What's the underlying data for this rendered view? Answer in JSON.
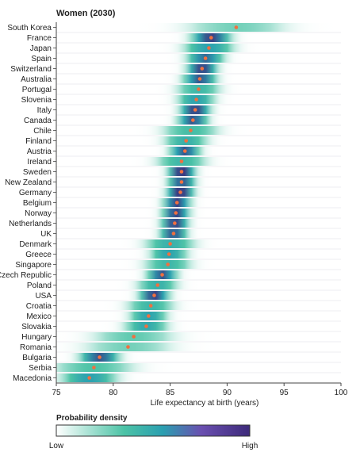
{
  "chart_data": {
    "type": "heatmap",
    "title": "Women (2030)",
    "xlabel": "Life expectancy at birth (years)",
    "xlim": [
      75,
      100
    ],
    "xticks": [
      75,
      80,
      85,
      90,
      95,
      100
    ],
    "legend": {
      "title": "Probability density",
      "low_label": "Low",
      "high_label": "High"
    },
    "colors": {
      "low": "#ffffff",
      "mid": "#4cc3a6",
      "teal": "#2a9fb0",
      "high": "#3d2a7a",
      "point": "#f07040",
      "separator": "#d9dde6"
    },
    "series": [
      {
        "country": "South Korea",
        "value": 90.8,
        "spread": 3.2,
        "peak": 0.35
      },
      {
        "country": "France",
        "value": 88.6,
        "spread": 1.3,
        "peak": 0.95
      },
      {
        "country": "Japan",
        "value": 88.4,
        "spread": 1.6,
        "peak": 0.7
      },
      {
        "country": "Spain",
        "value": 88.1,
        "spread": 1.2,
        "peak": 0.85
      },
      {
        "country": "Switzerland",
        "value": 87.8,
        "spread": 1.0,
        "peak": 0.95
      },
      {
        "country": "Australia",
        "value": 87.6,
        "spread": 1.1,
        "peak": 0.9
      },
      {
        "country": "Portugal",
        "value": 87.5,
        "spread": 1.4,
        "peak": 0.55
      },
      {
        "country": "Slovenia",
        "value": 87.3,
        "spread": 1.2,
        "peak": 0.7
      },
      {
        "country": "Italy",
        "value": 87.2,
        "spread": 1.0,
        "peak": 0.95
      },
      {
        "country": "Canada",
        "value": 87.0,
        "spread": 1.0,
        "peak": 0.9
      },
      {
        "country": "Chile",
        "value": 86.8,
        "spread": 1.8,
        "peak": 0.5
      },
      {
        "country": "Finland",
        "value": 86.4,
        "spread": 1.4,
        "peak": 0.6
      },
      {
        "country": "Austria",
        "value": 86.3,
        "spread": 1.0,
        "peak": 0.9
      },
      {
        "country": "Ireland",
        "value": 86.0,
        "spread": 1.6,
        "peak": 0.55
      },
      {
        "country": "Sweden",
        "value": 86.0,
        "spread": 0.9,
        "peak": 1.0
      },
      {
        "country": "New Zealand",
        "value": 86.0,
        "spread": 0.9,
        "peak": 0.9
      },
      {
        "country": "Germany",
        "value": 85.9,
        "spread": 0.9,
        "peak": 1.0
      },
      {
        "country": "Belgium",
        "value": 85.6,
        "spread": 0.9,
        "peak": 0.95
      },
      {
        "country": "Norway",
        "value": 85.5,
        "spread": 0.9,
        "peak": 0.95
      },
      {
        "country": "Netherlands",
        "value": 85.4,
        "spread": 0.9,
        "peak": 0.95
      },
      {
        "country": "UK",
        "value": 85.3,
        "spread": 0.9,
        "peak": 0.9
      },
      {
        "country": "Denmark",
        "value": 85.0,
        "spread": 1.6,
        "peak": 0.6
      },
      {
        "country": "Greece",
        "value": 84.9,
        "spread": 1.2,
        "peak": 0.7
      },
      {
        "country": "Singapore",
        "value": 84.8,
        "spread": 1.5,
        "peak": 0.55
      },
      {
        "country": "Czech Republic",
        "value": 84.3,
        "spread": 1.0,
        "peak": 0.9
      },
      {
        "country": "Poland",
        "value": 83.9,
        "spread": 1.3,
        "peak": 0.6
      },
      {
        "country": "USA",
        "value": 83.6,
        "spread": 1.0,
        "peak": 0.95
      },
      {
        "country": "Croatia",
        "value": 83.3,
        "spread": 1.5,
        "peak": 0.55
      },
      {
        "country": "Mexico",
        "value": 83.1,
        "spread": 1.2,
        "peak": 0.7
      },
      {
        "country": "Slovakia",
        "value": 82.9,
        "spread": 1.4,
        "peak": 0.65
      },
      {
        "country": "Hungary",
        "value": 81.8,
        "spread": 2.6,
        "peak": 0.4
      },
      {
        "country": "Romania",
        "value": 81.3,
        "spread": 2.8,
        "peak": 0.35
      },
      {
        "country": "Bulgaria",
        "value": 78.8,
        "spread": 1.3,
        "peak": 0.9
      },
      {
        "country": "Serbia",
        "value": 78.3,
        "spread": 2.6,
        "peak": 0.45
      },
      {
        "country": "Macedonia",
        "value": 77.9,
        "spread": 1.8,
        "peak": 0.7
      }
    ]
  }
}
